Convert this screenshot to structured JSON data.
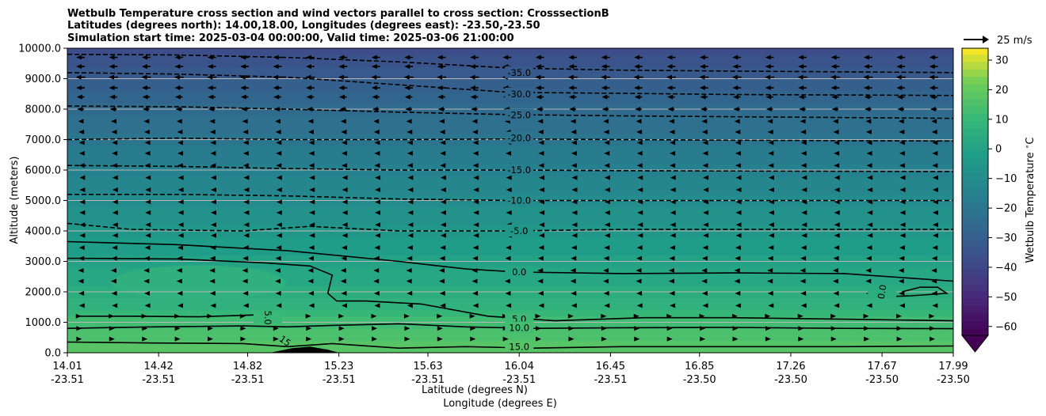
{
  "chart_data": {
    "type": "heatmap",
    "title_lines": [
      "Wetbulb Temperature cross section and wind vectors parallel to cross section: CrosssectionB",
      "Latitudes (degrees north): 14.00,18.00, Longitudes (degrees east): -23.50,-23.50",
      "Simulation start time: 2025-03-04 00:00:00, Valid time: 2025-03-06 21:00:00"
    ],
    "ylabel": "Altitude (meters)",
    "xlabel_lines": [
      "Latitude (degrees N)",
      "Longitude (degrees E)"
    ],
    "ylim": [
      0,
      10000
    ],
    "xlim": [
      14.01,
      17.99
    ],
    "y_ticks": [
      {
        "value": 0,
        "label": "0.0"
      },
      {
        "value": 1000,
        "label": "1000.0"
      },
      {
        "value": 2000,
        "label": "2000.0"
      },
      {
        "value": 3000,
        "label": "3000.0"
      },
      {
        "value": 4000,
        "label": "4000.0"
      },
      {
        "value": 5000,
        "label": "5000.0"
      },
      {
        "value": 6000,
        "label": "6000.0"
      },
      {
        "value": 7000,
        "label": "7000.0"
      },
      {
        "value": 8000,
        "label": "8000.0"
      },
      {
        "value": 9000,
        "label": "9000.0"
      },
      {
        "value": 10000,
        "label": "10000.0"
      }
    ],
    "x_ticks": [
      {
        "value": 14.01,
        "lat": "14.01",
        "lon": "-23.51"
      },
      {
        "value": 14.42,
        "lat": "14.42",
        "lon": "-23.51"
      },
      {
        "value": 14.82,
        "lat": "14.82",
        "lon": "-23.51"
      },
      {
        "value": 15.23,
        "lat": "15.23",
        "lon": "-23.51"
      },
      {
        "value": 15.63,
        "lat": "15.63",
        "lon": "-23.51"
      },
      {
        "value": 16.04,
        "lat": "16.04",
        "lon": "-23.51"
      },
      {
        "value": 16.45,
        "lat": "16.45",
        "lon": "-23.51"
      },
      {
        "value": 16.85,
        "lat": "16.85",
        "lon": "-23.50"
      },
      {
        "value": 17.26,
        "lat": "17.26",
        "lon": "-23.50"
      },
      {
        "value": 17.67,
        "lat": "17.67",
        "lon": "-23.50"
      },
      {
        "value": 17.99,
        "lat": "17.99",
        "lon": "-23.50"
      }
    ],
    "grid_y": true,
    "colorbar": {
      "label": "Wetbulb Temperature $^\\circ$C",
      "range": [
        -63,
        34
      ],
      "ticks": [
        {
          "value": 30,
          "label": "30"
        },
        {
          "value": 20,
          "label": "20"
        },
        {
          "value": 10,
          "label": "10"
        },
        {
          "value": 0,
          "label": "0"
        },
        {
          "value": -10,
          "label": "−10"
        },
        {
          "value": -20,
          "label": "−20"
        },
        {
          "value": -30,
          "label": "−30"
        },
        {
          "value": -40,
          "label": "−40"
        },
        {
          "value": -50,
          "label": "−50"
        },
        {
          "value": -60,
          "label": "−60"
        }
      ],
      "extend": "min"
    },
    "quiver_key": {
      "label": "25 m/s",
      "speed": 25
    },
    "temperature_profile": [
      {
        "alt": 0,
        "t": 18
      },
      {
        "alt": 400,
        "t": 16
      },
      {
        "alt": 1000,
        "t": 12
      },
      {
        "alt": 2000,
        "t": 5
      },
      {
        "alt": 3000,
        "t": 0
      },
      {
        "alt": 4000,
        "t": -5
      },
      {
        "alt": 5000,
        "t": -10
      },
      {
        "alt": 6000,
        "t": -15
      },
      {
        "alt": 7000,
        "t": -20
      },
      {
        "alt": 8000,
        "t": -25
      },
      {
        "alt": 9000,
        "t": -31
      },
      {
        "alt": 10000,
        "t": -37
      }
    ],
    "contours": [
      {
        "level": "-35.0",
        "dashed": true,
        "label_at": {
          "x": 16.04,
          "alt": 9200
        },
        "points": [
          [
            14.01,
            9800
          ],
          [
            14.5,
            9780
          ],
          [
            15.0,
            9700
          ],
          [
            15.5,
            9550
          ],
          [
            16.0,
            9350
          ],
          [
            16.5,
            9280
          ],
          [
            17.0,
            9250
          ],
          [
            17.99,
            9200
          ]
        ]
      },
      {
        "level": "-30.0",
        "dashed": true,
        "label_at": {
          "x": 16.04,
          "alt": 8500
        },
        "points": [
          [
            14.01,
            9200
          ],
          [
            14.5,
            9150
          ],
          [
            15.0,
            9050
          ],
          [
            15.5,
            8800
          ],
          [
            16.0,
            8550
          ],
          [
            16.5,
            8520
          ],
          [
            17.0,
            8480
          ],
          [
            17.99,
            8450
          ]
        ]
      },
      {
        "level": "-25.0",
        "dashed": true,
        "label_at": {
          "x": 16.04,
          "alt": 7800
        },
        "points": [
          [
            14.01,
            8100
          ],
          [
            14.5,
            8080
          ],
          [
            15.0,
            8000
          ],
          [
            15.5,
            7900
          ],
          [
            16.0,
            7820
          ],
          [
            16.5,
            7780
          ],
          [
            17.0,
            7750
          ],
          [
            17.99,
            7700
          ]
        ]
      },
      {
        "level": "-20.0",
        "dashed": true,
        "label_at": {
          "x": 16.04,
          "alt": 7050
        },
        "points": [
          [
            14.01,
            7000
          ],
          [
            14.5,
            7050
          ],
          [
            15.0,
            7000
          ],
          [
            15.5,
            7000
          ],
          [
            16.0,
            7020
          ],
          [
            16.5,
            7000
          ],
          [
            17.0,
            6980
          ],
          [
            17.99,
            6950
          ]
        ]
      },
      {
        "level": "-15.0",
        "dashed": true,
        "label_at": {
          "x": 16.04,
          "alt": 6000
        },
        "points": [
          [
            14.01,
            6150
          ],
          [
            14.5,
            6120
          ],
          [
            15.0,
            6050
          ],
          [
            15.5,
            6000
          ],
          [
            16.0,
            6000
          ],
          [
            16.5,
            5980
          ],
          [
            17.0,
            5970
          ],
          [
            17.99,
            5950
          ]
        ]
      },
      {
        "level": "-10.0",
        "dashed": true,
        "label_at": {
          "x": 16.04,
          "alt": 5000
        },
        "points": [
          [
            14.01,
            5200
          ],
          [
            14.5,
            5200
          ],
          [
            15.0,
            5150
          ],
          [
            15.5,
            5050
          ],
          [
            16.0,
            5000
          ],
          [
            16.5,
            5000
          ],
          [
            17.0,
            5000
          ],
          [
            17.99,
            5000
          ]
        ]
      },
      {
        "level": "-5.0",
        "dashed": true,
        "label_at": {
          "x": 16.04,
          "alt": 4000
        },
        "points": [
          [
            14.01,
            4250
          ],
          [
            14.3,
            4050
          ],
          [
            14.8,
            4000
          ],
          [
            15.1,
            4150
          ],
          [
            15.5,
            4000
          ],
          [
            16.0,
            4000
          ],
          [
            16.5,
            4050
          ],
          [
            17.0,
            4050
          ],
          [
            17.99,
            4050
          ]
        ]
      },
      {
        "level": "0.0",
        "dashed": false,
        "label_at": {
          "x": 16.04,
          "alt": 2650
        },
        "points": [
          [
            14.01,
            3650
          ],
          [
            14.5,
            3550
          ],
          [
            15.0,
            3350
          ],
          [
            15.5,
            3000
          ],
          [
            15.8,
            2750
          ],
          [
            16.04,
            2650
          ],
          [
            16.5,
            2600
          ],
          [
            17.0,
            2620
          ],
          [
            17.5,
            2600
          ],
          [
            17.99,
            2350
          ]
        ]
      },
      {
        "level": "0.0",
        "dashed": false,
        "label_at": {
          "x": 17.67,
          "alt": 2000
        },
        "points": [
          [
            17.68,
            2000
          ],
          [
            17.72,
            1850
          ],
          [
            17.8,
            1870
          ],
          [
            17.96,
            1950
          ],
          [
            17.92,
            2150
          ],
          [
            17.84,
            2150
          ],
          [
            17.76,
            2000
          ]
        ]
      },
      {
        "level": "5.0",
        "dashed": false,
        "label_at": {
          "x": 16.04,
          "alt": 1100
        },
        "points": [
          [
            14.01,
            3100
          ],
          [
            14.5,
            3080
          ],
          [
            14.9,
            2950
          ],
          [
            15.1,
            2850
          ],
          [
            15.2,
            2550
          ],
          [
            15.18,
            1950
          ],
          [
            15.22,
            1700
          ],
          [
            15.35,
            1700
          ],
          [
            15.6,
            1600
          ],
          [
            15.9,
            1200
          ],
          [
            16.2,
            1050
          ],
          [
            16.6,
            1150
          ],
          [
            17.0,
            1150
          ],
          [
            17.5,
            1100
          ],
          [
            17.99,
            1050
          ]
        ]
      },
      {
        "level": "5.0",
        "dashed": false,
        "label_at": {
          "x": 14.91,
          "alt": 1150
        },
        "points": [
          [
            14.05,
            1200
          ],
          [
            14.3,
            1200
          ],
          [
            14.6,
            1180
          ],
          [
            14.88,
            1250
          ]
        ]
      },
      {
        "level": "10.0",
        "dashed": false,
        "label_at": {
          "x": 16.04,
          "alt": 820
        },
        "points": [
          [
            14.01,
            800
          ],
          [
            14.4,
            850
          ],
          [
            14.8,
            880
          ],
          [
            15.0,
            850
          ],
          [
            15.2,
            900
          ],
          [
            15.5,
            950
          ],
          [
            15.8,
            850
          ],
          [
            16.1,
            800
          ],
          [
            16.5,
            820
          ],
          [
            17.0,
            830
          ],
          [
            17.5,
            800
          ],
          [
            17.99,
            790
          ]
        ]
      },
      {
        "level": "15.0",
        "dashed": false,
        "label_at": {
          "x": 16.04,
          "alt": 200
        },
        "points": [
          [
            14.01,
            350
          ],
          [
            14.4,
            320
          ],
          [
            14.8,
            300
          ],
          [
            15.0,
            200
          ],
          [
            15.2,
            300
          ],
          [
            15.5,
            150
          ],
          [
            15.8,
            200
          ],
          [
            16.1,
            150
          ],
          [
            16.5,
            200
          ],
          [
            17.0,
            200
          ],
          [
            17.5,
            200
          ],
          [
            17.99,
            220
          ]
        ]
      }
    ],
    "contour_label_rotations": {
      "5.0-left": 90,
      "15-steep": 35
    },
    "steep_label": {
      "text": "15",
      "x": 14.98,
      "alt": 300
    },
    "terrain": [
      [
        14.92,
        0
      ],
      [
        15.02,
        150
      ],
      [
        15.1,
        200
      ],
      [
        15.18,
        100
      ],
      [
        15.23,
        0
      ]
    ],
    "wind_rows": [
      {
        "alt": 9700,
        "u": -9
      },
      {
        "alt": 9400,
        "u": -9
      },
      {
        "alt": 9050,
        "u": -10
      },
      {
        "alt": 8700,
        "u": -9
      },
      {
        "alt": 8400,
        "u": -8
      },
      {
        "alt": 8000,
        "u": -7
      },
      {
        "alt": 7600,
        "u": -5
      },
      {
        "alt": 7250,
        "u": -4
      },
      {
        "alt": 6900,
        "u": -3
      },
      {
        "alt": 6550,
        "u": -3
      },
      {
        "alt": 6150,
        "u": -3
      },
      {
        "alt": 5750,
        "u": -2
      },
      {
        "alt": 5350,
        "u": -2
      },
      {
        "alt": 4950,
        "u": -2
      },
      {
        "alt": 4600,
        "u": -2
      },
      {
        "alt": 4200,
        "u": -2
      },
      {
        "alt": 3850,
        "u": -2
      },
      {
        "alt": 3450,
        "u": -3
      },
      {
        "alt": 3100,
        "u": -4
      },
      {
        "alt": 2700,
        "u": -5
      },
      {
        "alt": 2350,
        "u": -5
      },
      {
        "alt": 1950,
        "u": -4
      },
      {
        "alt": 1550,
        "u": -3
      },
      {
        "alt": 1200,
        "u": 2
      },
      {
        "alt": 800,
        "u": 3
      },
      {
        "alt": 450,
        "u": 3
      }
    ]
  }
}
